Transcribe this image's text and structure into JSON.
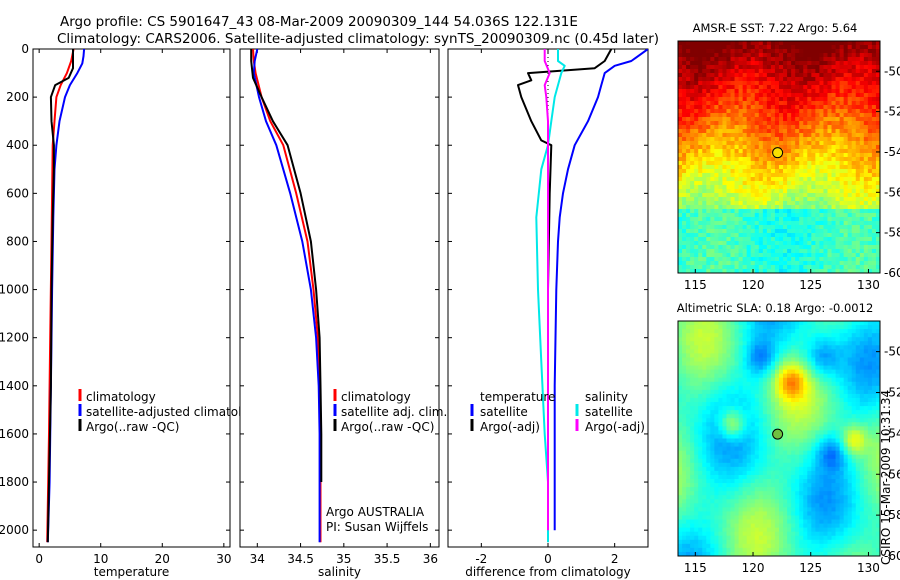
{
  "header": {
    "title_line1": "Argo profile: CS 5901647_43 08-Mar-2009 20090309_144 54.036S 122.131E",
    "title_line2": "Climatology: CARS2006. Satellite-adjusted climatology: synTS_20090309.nc (0.45d later)"
  },
  "side_stamp": "CSIRO 15-Mar-2009 10:31:34",
  "colors": {
    "climatology": "#ff0000",
    "satellite": "#0000ff",
    "argo": "#000000",
    "cyan": "#00e8e8",
    "magenta": "#ff00ff"
  },
  "chart_data": [
    {
      "type": "line",
      "id": "temperature",
      "xlabel": "temperature",
      "ylabel": "",
      "xlim": [
        -1,
        31
      ],
      "ylim": [
        2070,
        0
      ],
      "xticks": [
        0,
        10,
        20,
        30
      ],
      "yticks": [
        0,
        200,
        400,
        600,
        800,
        1000,
        1200,
        1400,
        1600,
        1800,
        2000
      ],
      "legend": {
        "placement": "lower-right",
        "entries": [
          "climatology",
          "satellite-adjusted climatology",
          "Argo(..raw -QC)"
        ]
      },
      "series": [
        {
          "name": "climatology",
          "color": "#ff0000",
          "x": [
            5.6,
            5.2,
            4.5,
            3.5,
            2.8,
            2.5,
            2.2,
            2.1,
            2.0,
            1.8,
            1.6,
            1.3
          ],
          "y": [
            0,
            50,
            100,
            150,
            200,
            300,
            400,
            600,
            800,
            1200,
            1600,
            2050
          ]
        },
        {
          "name": "satellite-adjusted climatology",
          "color": "#0000ff",
          "x": [
            7.3,
            7.2,
            7.0,
            6.2,
            5.0,
            4.2,
            3.3,
            2.8,
            2.5,
            2.3,
            2.1,
            1.9,
            1.7,
            1.4
          ],
          "y": [
            0,
            30,
            60,
            100,
            150,
            200,
            300,
            400,
            500,
            700,
            1000,
            1400,
            1800,
            2050
          ]
        },
        {
          "name": "Argo(..raw -QC)",
          "color": "#000000",
          "x": [
            5.5,
            5.5,
            4.8,
            2.6,
            1.9,
            2.0,
            2.4,
            2.4,
            2.2,
            2.0,
            1.9,
            1.6,
            1.4
          ],
          "y": [
            0,
            80,
            120,
            150,
            200,
            300,
            400,
            500,
            700,
            1000,
            1400,
            1800,
            2050
          ]
        }
      ]
    },
    {
      "type": "line",
      "id": "salinity",
      "xlabel": "salinity",
      "ylabel": "",
      "xlim": [
        33.8,
        36.1
      ],
      "ylim": [
        2070,
        0
      ],
      "xticks": [
        34,
        34.5,
        35,
        35.5,
        36
      ],
      "yticks": [],
      "legend": {
        "placement": "lower-right",
        "entries": [
          "climatology",
          "satellite adj. clim.",
          "Argo(..raw -QC)"
        ]
      },
      "annotation": [
        "Argo AUSTRALIA",
        "PI: Susan Wijffels"
      ],
      "series": [
        {
          "name": "climatology",
          "color": "#ff0000",
          "x": [
            33.95,
            33.96,
            33.98,
            34.05,
            34.15,
            34.3,
            34.45,
            34.58,
            34.65,
            34.7,
            34.72,
            34.73,
            34.73,
            34.73
          ],
          "y": [
            0,
            50,
            100,
            200,
            300,
            400,
            600,
            800,
            1000,
            1200,
            1400,
            1600,
            1800,
            2050
          ]
        },
        {
          "name": "satellite adj. clim.",
          "color": "#0000ff",
          "x": [
            34.0,
            33.97,
            33.96,
            34.02,
            34.1,
            34.22,
            34.38,
            34.52,
            34.62,
            34.68,
            34.71,
            34.72,
            34.72,
            34.72
          ],
          "y": [
            0,
            50,
            100,
            200,
            300,
            400,
            600,
            800,
            1000,
            1200,
            1400,
            1600,
            1800,
            2050
          ]
        },
        {
          "name": "Argo(..raw -QC)",
          "color": "#000000",
          "x": [
            33.93,
            33.93,
            33.95,
            34.05,
            34.18,
            34.35,
            34.5,
            34.62,
            34.68,
            34.72,
            34.73,
            34.74,
            34.74
          ],
          "y": [
            0,
            50,
            120,
            200,
            300,
            400,
            600,
            800,
            1000,
            1200,
            1400,
            1600,
            1800
          ]
        }
      ]
    },
    {
      "type": "line",
      "id": "difference",
      "xlabel": "difference from climatology",
      "ylabel": "",
      "xlim": [
        -3,
        3
      ],
      "ylim": [
        2070,
        0
      ],
      "xticks": [
        -2,
        0,
        2
      ],
      "yticks": [],
      "legend": {
        "placement": "lower-right",
        "groups": [
          {
            "heading": "temperature",
            "entries": [
              "satellite",
              "Argo(-adj)"
            ]
          },
          {
            "heading": "salinity",
            "entries": [
              "satellite",
              "Argo(-adj)"
            ]
          }
        ]
      },
      "series": [
        {
          "name": "temperature satellite",
          "color": "#0000ff",
          "x": [
            3.0,
            2.5,
            2.0,
            1.7,
            1.6,
            1.5,
            1.2,
            0.8,
            0.6,
            0.45,
            0.35,
            0.3,
            0.25,
            0.2,
            0.2,
            0.2
          ],
          "y": [
            0,
            50,
            70,
            100,
            150,
            200,
            300,
            400,
            500,
            600,
            700,
            800,
            1000,
            1400,
            1800,
            2000
          ]
        },
        {
          "name": "temperature Argo(-adj)",
          "color": "#000000",
          "x": [
            1.9,
            1.7,
            1.4,
            -0.6,
            -0.5,
            -0.9,
            -0.8,
            -0.5,
            -0.2,
            0.1,
            0.05,
            0.0,
            0.0,
            0.0
          ],
          "y": [
            0,
            50,
            80,
            100,
            130,
            150,
            200,
            300,
            380,
            400,
            600,
            1000,
            1400,
            1800
          ]
        },
        {
          "name": "salinity satellite",
          "color": "#00e8e8",
          "x": [
            0.3,
            0.3,
            0.5,
            0.4,
            0.3,
            0.2,
            0.1,
            0.0,
            -0.2,
            -0.35,
            -0.3,
            -0.2,
            -0.1,
            0.0,
            0.0,
            0.0
          ],
          "y": [
            0,
            50,
            70,
            100,
            150,
            200,
            300,
            400,
            500,
            700,
            1000,
            1300,
            1600,
            1800,
            1950,
            2050
          ]
        },
        {
          "name": "salinity Argo(-adj)",
          "color": "#ff00ff",
          "x": [
            -0.1,
            -0.1,
            0.05,
            -0.1,
            -0.05,
            0.0,
            0.0,
            0.0,
            0.0,
            0.0,
            0.0,
            0.0
          ],
          "y": [
            0,
            50,
            100,
            150,
            200,
            300,
            400,
            600,
            1000,
            1400,
            1800,
            2000
          ]
        }
      ]
    },
    {
      "type": "heatmap",
      "id": "sst-map",
      "title": "AMSR-E SST: 7.22  Argo: 5.64",
      "xlim": [
        113.5,
        131
      ],
      "ylim": [
        -60,
        -48.5
      ],
      "xticks": [
        115,
        120,
        125,
        130
      ],
      "yticks": [
        -50,
        -52,
        -54,
        -56,
        -58,
        -60
      ],
      "argo_position": {
        "lon": 122.131,
        "lat": -54.036
      },
      "colormap": "jet-upper"
    },
    {
      "type": "heatmap",
      "id": "sla-map",
      "title": "Altimetric SLA: 0.18  Argo: -0.0012",
      "xlim": [
        113.5,
        131
      ],
      "ylim": [
        -60,
        -48.5
      ],
      "xticks": [
        115,
        120,
        125,
        130
      ],
      "yticks": [
        -50,
        -52,
        -54,
        -56,
        -58,
        -60
      ],
      "argo_position": {
        "lon": 122.131,
        "lat": -54.036
      },
      "colormap": "jet"
    }
  ]
}
